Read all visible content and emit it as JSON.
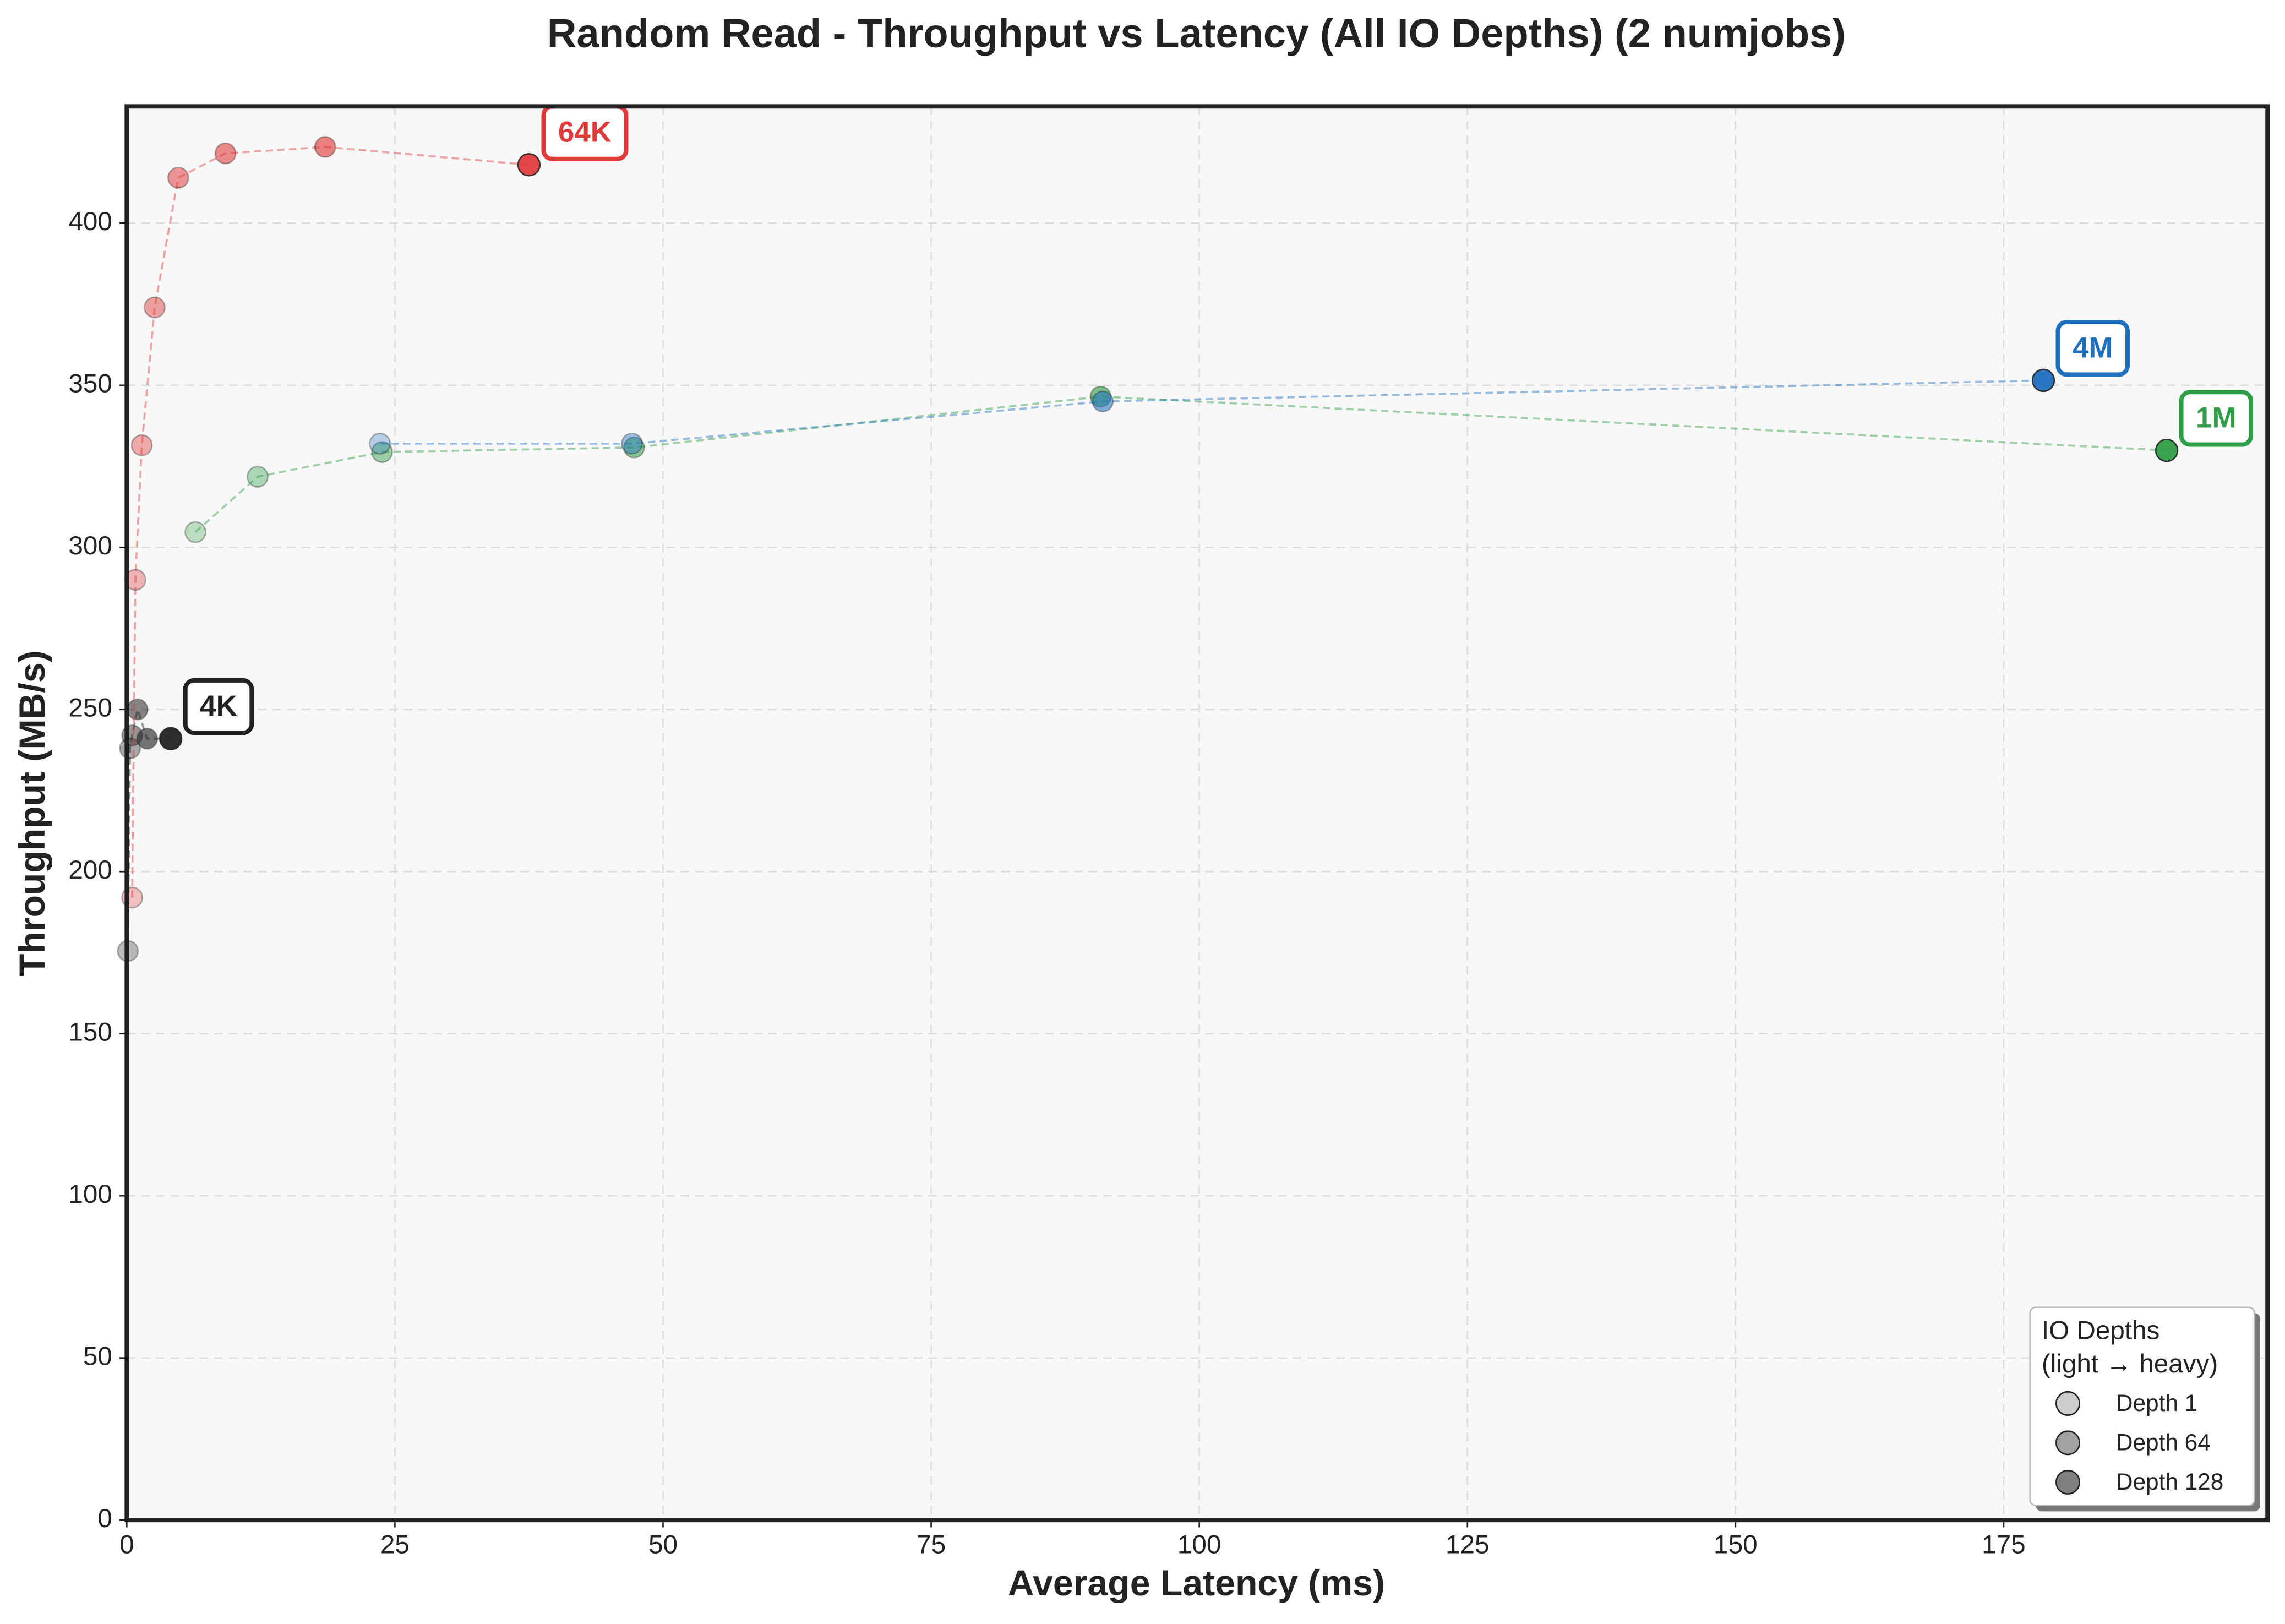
{
  "chart_data": {
    "type": "scatter",
    "title": "Random Read - Throughput vs Latency (All IO Depths) (2 numjobs)",
    "x_label": "Average Latency (ms)",
    "y_label": "Throughput (MB/s)",
    "xlim": [
      0,
      199.6
    ],
    "ylim": [
      0,
      436
    ],
    "xticks": [
      0,
      25,
      50,
      75,
      100,
      125,
      150,
      175
    ],
    "yticks": [
      0,
      50,
      100,
      150,
      200,
      250,
      300,
      350,
      400
    ],
    "grid": true,
    "series": [
      {
        "name": "4K",
        "color": "#222222",
        "x": [
          0.1,
          0.3,
          0.5,
          1.0,
          1.9,
          4.1
        ],
        "values": [
          175.5,
          238,
          242,
          250,
          241,
          241
        ]
      },
      {
        "name": "64K",
        "color": "#e03b3b",
        "x": [
          0.5,
          0.8,
          1.4,
          2.6,
          4.8,
          9.2,
          18.5,
          37.5
        ],
        "values": [
          192,
          290,
          331.5,
          374,
          414,
          421.5,
          423.5,
          418
        ]
      },
      {
        "name": "1M",
        "color": "#2e9e47",
        "x": [
          6.4,
          12.2,
          23.8,
          47.3,
          90.8,
          190.2
        ],
        "values": [
          304.7,
          321.8,
          329.4,
          330.8,
          346.5,
          329.9
        ]
      },
      {
        "name": "4M",
        "color": "#1f6fbf",
        "x": [
          23.6,
          47.1,
          91.0,
          178.7
        ],
        "values": [
          332,
          332,
          345,
          351.5
        ]
      }
    ],
    "legend": {
      "title": [
        "IO Depths",
        "(light → heavy)"
      ],
      "entries": [
        "Depth 1",
        "Depth 64",
        "Depth 128"
      ],
      "position": "lower right"
    }
  }
}
